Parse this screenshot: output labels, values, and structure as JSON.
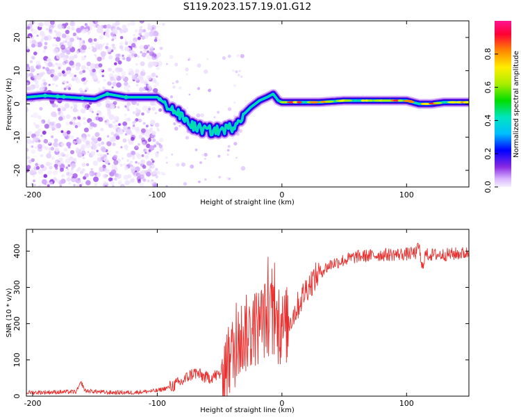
{
  "title": "S119.2023.157.19.01.G12",
  "chart_data": [
    {
      "type": "heatmap",
      "name": "spectrogram",
      "xlabel": "Height of straight line (km)",
      "ylabel": "Frequency (Hz)",
      "xlim": [
        -205,
        150
      ],
      "ylim": [
        -25,
        25
      ],
      "xticks": [
        -200,
        -100,
        0,
        100
      ],
      "yticks": [
        20,
        10,
        0,
        -10,
        -20
      ],
      "colorbar": {
        "label": "Normalized spectral amplitude",
        "range": [
          0.0,
          1.0
        ],
        "ticks": [
          0.0,
          0.2,
          0.4,
          0.6,
          0.8
        ]
      },
      "ridge": {
        "x": [
          -205,
          -190,
          -170,
          -150,
          -140,
          -125,
          -110,
          -100,
          -90,
          -80,
          -70,
          -60,
          -50,
          -40,
          -33,
          -25,
          -18,
          -12,
          -7,
          -3,
          0,
          10,
          30,
          50,
          80,
          100,
          110,
          120,
          130,
          150
        ],
        "y": [
          2,
          2.5,
          2,
          1.5,
          3,
          2,
          2,
          2,
          -1,
          -4,
          -7,
          -8,
          -8,
          -7,
          -4,
          -1,
          1,
          2,
          3,
          1,
          0.5,
          0.5,
          0.5,
          1,
          1,
          1,
          0,
          0,
          0.5,
          0.5
        ]
      },
      "grid": false
    },
    {
      "type": "line",
      "name": "snr",
      "xlabel": "Height of straight line (km)",
      "ylabel": "SNR (10 * v/v)",
      "xlim": [
        -205,
        150
      ],
      "ylim": [
        0,
        460
      ],
      "xticks": [
        -200,
        -100,
        0,
        100
      ],
      "yticks": [
        0,
        100,
        200,
        300,
        400
      ],
      "color": "#e8302e",
      "trend": {
        "x": [
          -205,
          -165,
          -161,
          -158,
          -140,
          -120,
          -100,
          -90,
          -80,
          -75,
          -70,
          -60,
          -50,
          -45,
          -40,
          -35,
          -30,
          -25,
          -20,
          -15,
          -10,
          -5,
          0,
          5,
          10,
          20,
          30,
          40,
          50,
          60,
          80,
          100,
          108,
          110,
          112,
          115,
          130,
          150
        ],
        "y": [
          10,
          12,
          38,
          15,
          10,
          10,
          15,
          25,
          40,
          55,
          65,
          50,
          60,
          90,
          110,
          150,
          170,
          175,
          190,
          210,
          220,
          200,
          180,
          200,
          230,
          300,
          340,
          365,
          375,
          385,
          390,
          392,
          395,
          420,
          350,
          390,
          390,
          395
        ]
      },
      "noise": 18,
      "grid": false
    }
  ]
}
